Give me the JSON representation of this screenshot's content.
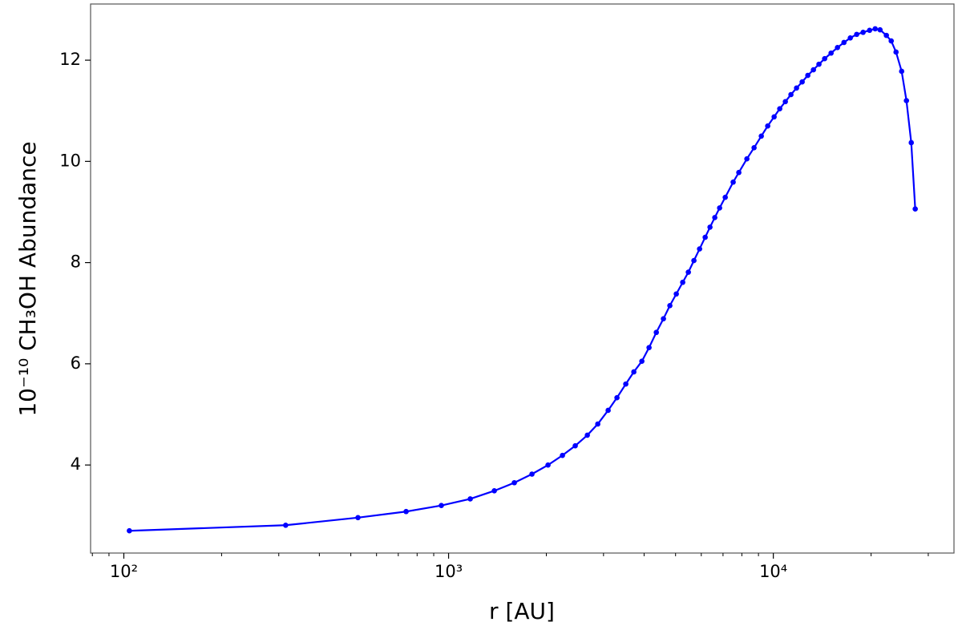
{
  "chart_data": {
    "type": "line",
    "xlabel": "r [AU]",
    "ylabel": "10⁻¹⁰ CH₃OH Abundance",
    "color": "#0000ff",
    "xscale": "log",
    "x": [
      104,
      315,
      526,
      740,
      950,
      1166,
      1383,
      1594,
      1806,
      2024,
      2242,
      2455,
      2675,
      2880,
      3100,
      3300,
      3513,
      3719,
      3937,
      4143,
      4362,
      4588,
      4802,
      5026,
      5260,
      5474,
      5695,
      5928,
      6168,
      6382,
      6603,
      6833,
      7111,
      7522,
      7830,
      8290,
      8724,
      9183,
      9610,
      10057,
      10466,
      10890,
      11330,
      11790,
      12270,
      12770,
      13290,
      13820,
      14390,
      15060,
      15760,
      16500,
      17260,
      18060,
      18900,
      19790,
      20590,
      21310,
      22290,
      23070,
      23870,
      24840,
      25700,
      26590,
      27350
    ],
    "values": [
      2.7,
      2.81,
      2.96,
      3.08,
      3.2,
      3.33,
      3.49,
      3.65,
      3.82,
      4.0,
      4.19,
      4.38,
      4.59,
      4.81,
      5.08,
      5.33,
      5.6,
      5.84,
      6.05,
      6.32,
      6.62,
      6.89,
      7.15,
      7.38,
      7.61,
      7.81,
      8.04,
      8.27,
      8.5,
      8.7,
      8.89,
      9.08,
      9.29,
      9.59,
      9.78,
      10.05,
      10.27,
      10.5,
      10.7,
      10.88,
      11.04,
      11.18,
      11.32,
      11.45,
      11.57,
      11.7,
      11.81,
      11.92,
      12.03,
      12.14,
      12.25,
      12.35,
      12.44,
      12.51,
      12.55,
      12.59,
      12.62,
      12.6,
      12.49,
      12.38,
      12.16,
      11.78,
      11.2,
      10.37,
      9.06
    ],
    "xlim": [
      79,
      36000
    ],
    "ylim": [
      2.26,
      13.11
    ],
    "xticks": [
      {
        "value": 100,
        "label": "10²"
      },
      {
        "value": 1000,
        "label": "10³"
      },
      {
        "value": 10000,
        "label": "10⁴"
      }
    ],
    "xminorticks": [
      80,
      90,
      200,
      300,
      400,
      500,
      600,
      700,
      800,
      900,
      2000,
      3000,
      4000,
      5000,
      6000,
      7000,
      8000,
      9000,
      20000,
      30000
    ],
    "yticks": [
      4,
      6,
      8,
      10,
      12
    ]
  }
}
